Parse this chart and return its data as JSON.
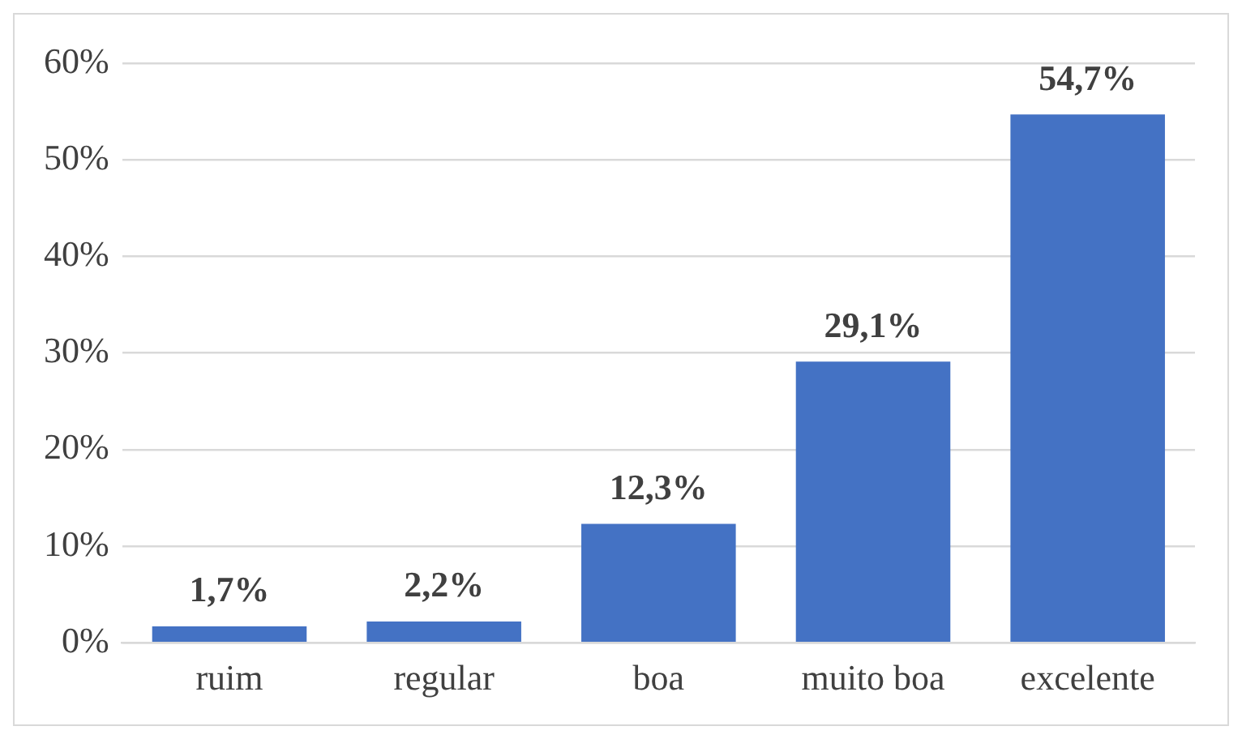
{
  "chart_data": {
    "type": "bar",
    "categories": [
      "ruim",
      "regular",
      "boa",
      "muito boa",
      "excelente"
    ],
    "values": [
      1.7,
      2.2,
      12.3,
      29.1,
      54.7
    ],
    "value_labels": [
      "1,7%",
      "2,2%",
      "12,3%",
      "29,1%",
      "54,7%"
    ],
    "color": "#4472c4",
    "ylim": [
      0,
      60
    ],
    "yticks": [
      {
        "value": 0,
        "label": "0%"
      },
      {
        "value": 10,
        "label": "10%"
      },
      {
        "value": 20,
        "label": "20%"
      },
      {
        "value": 30,
        "label": "30%"
      },
      {
        "value": 40,
        "label": "40%"
      },
      {
        "value": 50,
        "label": "50%"
      },
      {
        "value": 60,
        "label": "60%"
      }
    ],
    "grid": "y",
    "legend": false
  }
}
